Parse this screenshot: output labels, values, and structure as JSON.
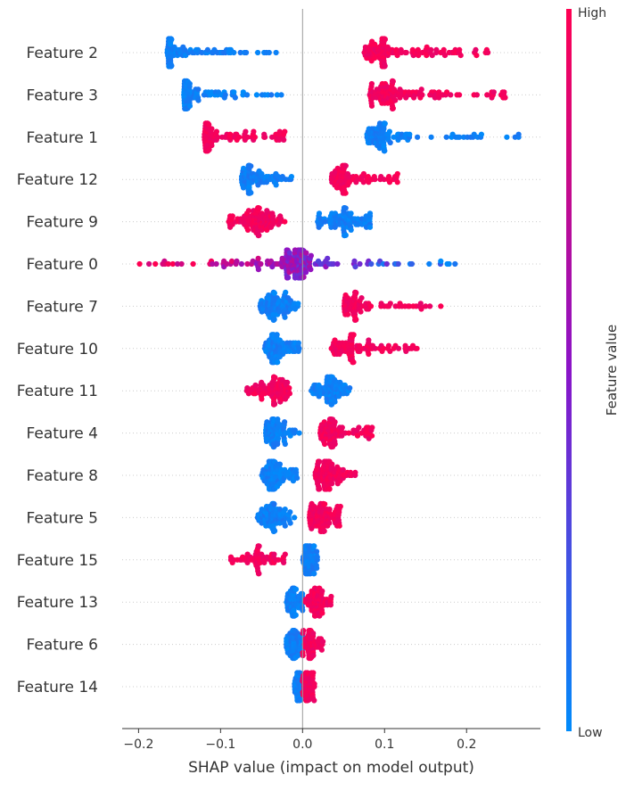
{
  "chart_data": {
    "type": "scatter",
    "xlabel": "SHAP value (impact on model output)",
    "xlim": [
      -0.22,
      0.29
    ],
    "xticks": [
      -0.2,
      -0.1,
      0.0,
      0.1,
      0.2
    ],
    "xtick_labels": [
      "−0.2",
      "−0.1",
      "0.0",
      "0.1",
      "0.2"
    ],
    "grid": false,
    "colorbar": {
      "title": "Feature value",
      "high_label": "High",
      "low_label": "Low",
      "high_color": "#ff0052",
      "low_color": "#008bfb"
    },
    "features": [
      {
        "name": "Feature 2",
        "low": {
          "min": -0.165,
          "max": -0.025,
          "mode": -0.16,
          "n": 110
        },
        "high": {
          "min": 0.075,
          "max": 0.23,
          "mode": 0.1,
          "n": 120
        }
      },
      {
        "name": "Feature 3",
        "low": {
          "min": -0.145,
          "max": -0.025,
          "mode": -0.14,
          "n": 110
        },
        "high": {
          "min": 0.08,
          "max": 0.255,
          "mode": 0.11,
          "n": 120
        }
      },
      {
        "name": "Feature 1",
        "low": {
          "min": 0.078,
          "max": 0.265,
          "mode": 0.1,
          "n": 100
        },
        "high": {
          "min": -0.12,
          "max": -0.018,
          "mode": -0.115,
          "n": 120
        }
      },
      {
        "name": "Feature 12",
        "low": {
          "min": -0.075,
          "max": -0.012,
          "mode": -0.065,
          "n": 90
        },
        "high": {
          "min": 0.035,
          "max": 0.12,
          "mode": 0.05,
          "n": 90
        }
      },
      {
        "name": "Feature 9",
        "low": {
          "min": 0.018,
          "max": 0.085,
          "mode": 0.05,
          "n": 90
        },
        "high": {
          "min": -0.09,
          "max": -0.018,
          "mode": -0.055,
          "n": 110
        }
      },
      {
        "name": "Feature 0",
        "low": {
          "min": -0.01,
          "max": 0.2,
          "mode": 0.0,
          "n": 90
        },
        "high": {
          "min": -0.2,
          "max": 0.01,
          "mode": -0.02,
          "n": 110
        }
      },
      {
        "name": "Feature 7",
        "low": {
          "min": -0.052,
          "max": -0.005,
          "mode": -0.035,
          "n": 100
        },
        "high": {
          "min": 0.05,
          "max": 0.17,
          "mode": 0.065,
          "n": 90
        }
      },
      {
        "name": "Feature 10",
        "low": {
          "min": -0.047,
          "max": -0.003,
          "mode": -0.035,
          "n": 100
        },
        "high": {
          "min": 0.035,
          "max": 0.145,
          "mode": 0.06,
          "n": 90
        }
      },
      {
        "name": "Feature 11",
        "low": {
          "min": 0.01,
          "max": 0.058,
          "mode": 0.035,
          "n": 90
        },
        "high": {
          "min": -0.072,
          "max": -0.015,
          "mode": -0.035,
          "n": 100
        }
      },
      {
        "name": "Feature 4",
        "low": {
          "min": -0.045,
          "max": -0.003,
          "mode": -0.035,
          "n": 90
        },
        "high": {
          "min": 0.02,
          "max": 0.087,
          "mode": 0.035,
          "n": 90
        }
      },
      {
        "name": "Feature 8",
        "low": {
          "min": -0.05,
          "max": -0.003,
          "mode": -0.035,
          "n": 110
        },
        "high": {
          "min": 0.015,
          "max": 0.065,
          "mode": 0.03,
          "n": 110
        }
      },
      {
        "name": "Feature 5",
        "low": {
          "min": -0.055,
          "max": -0.008,
          "mode": -0.035,
          "n": 90
        },
        "high": {
          "min": 0.008,
          "max": 0.048,
          "mode": 0.025,
          "n": 110
        }
      },
      {
        "name": "Feature 15",
        "low": {
          "min": 0.0,
          "max": 0.018,
          "mode": 0.008,
          "n": 90
        },
        "high": {
          "min": -0.088,
          "max": -0.02,
          "mode": -0.055,
          "n": 60
        }
      },
      {
        "name": "Feature 13",
        "low": {
          "min": -0.02,
          "max": 0.0,
          "mode": -0.01,
          "n": 80
        },
        "high": {
          "min": 0.002,
          "max": 0.035,
          "mode": 0.015,
          "n": 80
        }
      },
      {
        "name": "Feature 6",
        "low": {
          "min": -0.02,
          "max": 0.0,
          "mode": -0.01,
          "n": 80
        },
        "high": {
          "min": 0.0,
          "max": 0.025,
          "mode": 0.01,
          "n": 80
        }
      },
      {
        "name": "Feature 14",
        "low": {
          "min": -0.01,
          "max": 0.0,
          "mode": -0.005,
          "n": 70
        },
        "high": {
          "min": 0.0,
          "max": 0.015,
          "mode": 0.006,
          "n": 70
        }
      }
    ]
  }
}
